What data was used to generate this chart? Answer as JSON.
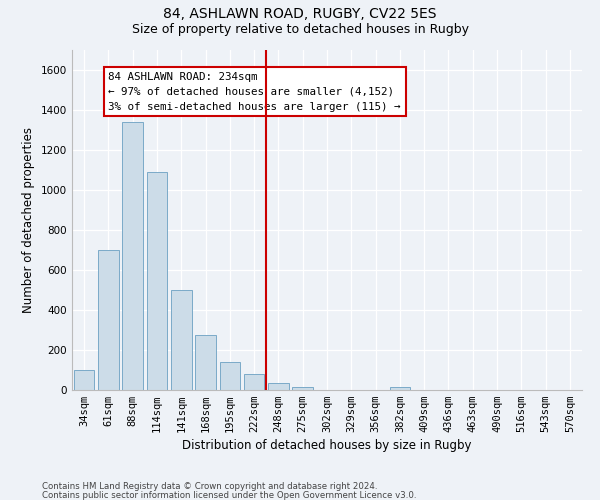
{
  "title1": "84, ASHLAWN ROAD, RUGBY, CV22 5ES",
  "title2": "Size of property relative to detached houses in Rugby",
  "xlabel": "Distribution of detached houses by size in Rugby",
  "ylabel": "Number of detached properties",
  "categories": [
    "34sqm",
    "61sqm",
    "88sqm",
    "114sqm",
    "141sqm",
    "168sqm",
    "195sqm",
    "222sqm",
    "248sqm",
    "275sqm",
    "302sqm",
    "329sqm",
    "356sqm",
    "382sqm",
    "409sqm",
    "436sqm",
    "463sqm",
    "490sqm",
    "516sqm",
    "543sqm",
    "570sqm"
  ],
  "values": [
    100,
    700,
    1340,
    1090,
    500,
    275,
    140,
    80,
    35,
    15,
    0,
    0,
    0,
    15,
    0,
    0,
    0,
    0,
    0,
    0,
    0
  ],
  "bar_color": "#ccdce8",
  "bar_edgecolor": "#7aaac8",
  "vline_x": 7.5,
  "vline_color": "#cc0000",
  "annotation_text": "84 ASHLAWN ROAD: 234sqm\n← 97% of detached houses are smaller (4,152)\n3% of semi-detached houses are larger (115) →",
  "annotation_box_color": "#cc0000",
  "ylim": [
    0,
    1700
  ],
  "yticks": [
    0,
    200,
    400,
    600,
    800,
    1000,
    1200,
    1400,
    1600
  ],
  "footer1": "Contains HM Land Registry data © Crown copyright and database right 2024.",
  "footer2": "Contains public sector information licensed under the Open Government Licence v3.0.",
  "bg_color": "#eef2f7",
  "grid_color": "#ffffff",
  "title1_fontsize": 10,
  "title2_fontsize": 9,
  "xlabel_fontsize": 8.5,
  "ylabel_fontsize": 8.5,
  "tick_fontsize": 7.5,
  "ann_fontsize": 7.8
}
